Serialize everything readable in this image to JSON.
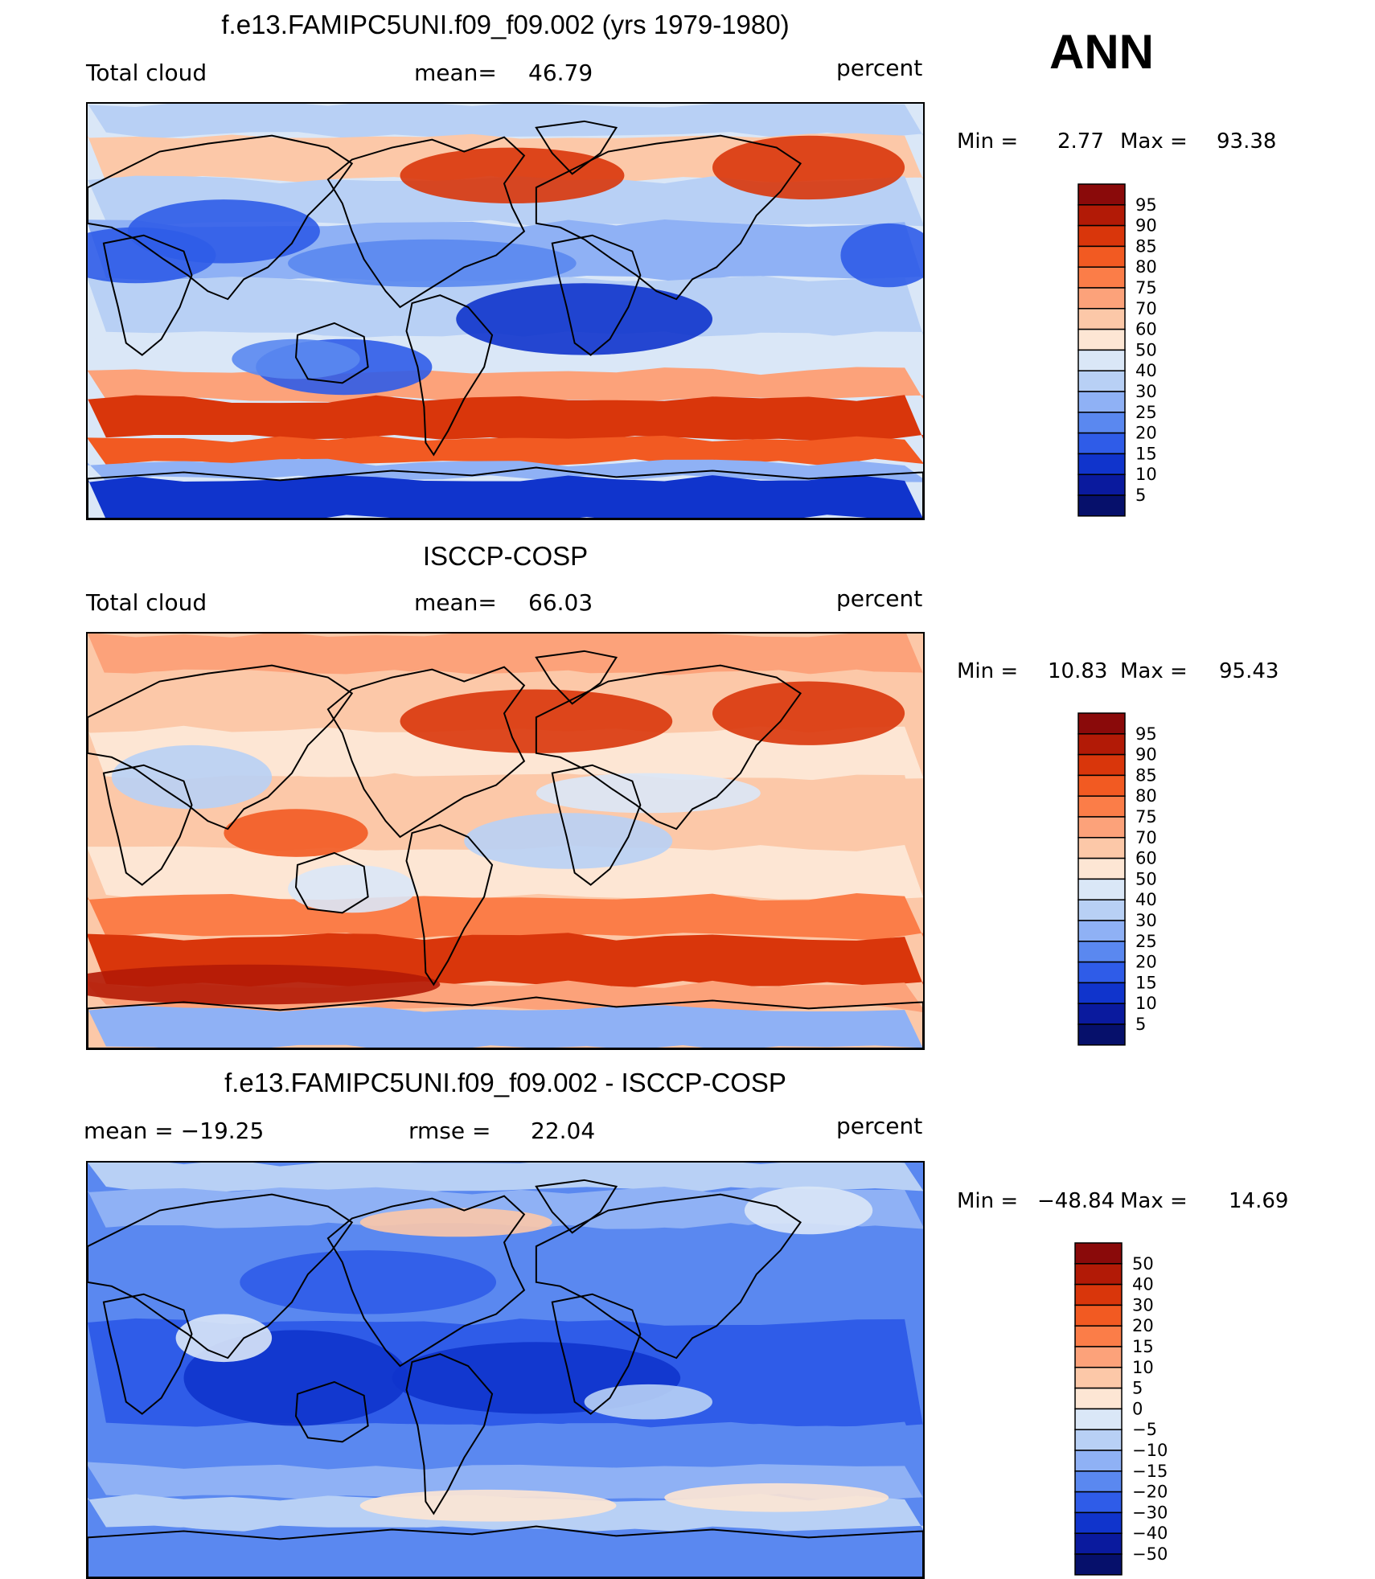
{
  "season": "ANN",
  "units": "percent",
  "panels": [
    {
      "id": "model",
      "title": "f.e13.FAMIPC5UNI.f09_f09.002 (yrs 1979-1980)",
      "left_label": "Total cloud",
      "stat_label": "mean=",
      "stat_value": "46.79",
      "units": "percent",
      "min_label": "Min =",
      "min_value": "2.77",
      "max_label": "Max =",
      "max_value": "93.38",
      "levels": [
        "95",
        "90",
        "85",
        "80",
        "75",
        "70",
        "60",
        "50",
        "40",
        "30",
        "25",
        "20",
        "15",
        "10",
        "5"
      ]
    },
    {
      "id": "obs",
      "title": "ISCCP-COSP",
      "left_label": "Total cloud",
      "stat_label": "mean=",
      "stat_value": "66.03",
      "units": "percent",
      "min_label": "Min =",
      "min_value": "10.83",
      "max_label": "Max =",
      "max_value": "95.43",
      "levels": [
        "95",
        "90",
        "85",
        "80",
        "75",
        "70",
        "60",
        "50",
        "40",
        "30",
        "25",
        "20",
        "15",
        "10",
        "5"
      ]
    },
    {
      "id": "diff",
      "title": "f.e13.FAMIPC5UNI.f09_f09.002 - ISCCP-COSP",
      "left_label": "mean = −19.25",
      "stat_label": "rmse =",
      "stat_value": "22.04",
      "units": "percent",
      "min_label": "Min =",
      "min_value": "−48.84",
      "max_label": "Max =",
      "max_value": "14.69",
      "levels": [
        "50",
        "40",
        "30",
        "20",
        "15",
        "10",
        "5",
        "0",
        "−5",
        "−10",
        "−15",
        "−20",
        "−30",
        "−40",
        "−50"
      ]
    }
  ],
  "colors": {
    "palette": [
      "#8a0a0a",
      "#b21a06",
      "#d9360b",
      "#f25a22",
      "#fb7d48",
      "#fca27a",
      "#fcc8a8",
      "#fde6d4",
      "#dae7f7",
      "#b8d0f5",
      "#8fb1f5",
      "#5a88f0",
      "#2f5ce8",
      "#1034cc",
      "#0a1a9e",
      "#06106b"
    ],
    "coast": "#000000"
  }
}
